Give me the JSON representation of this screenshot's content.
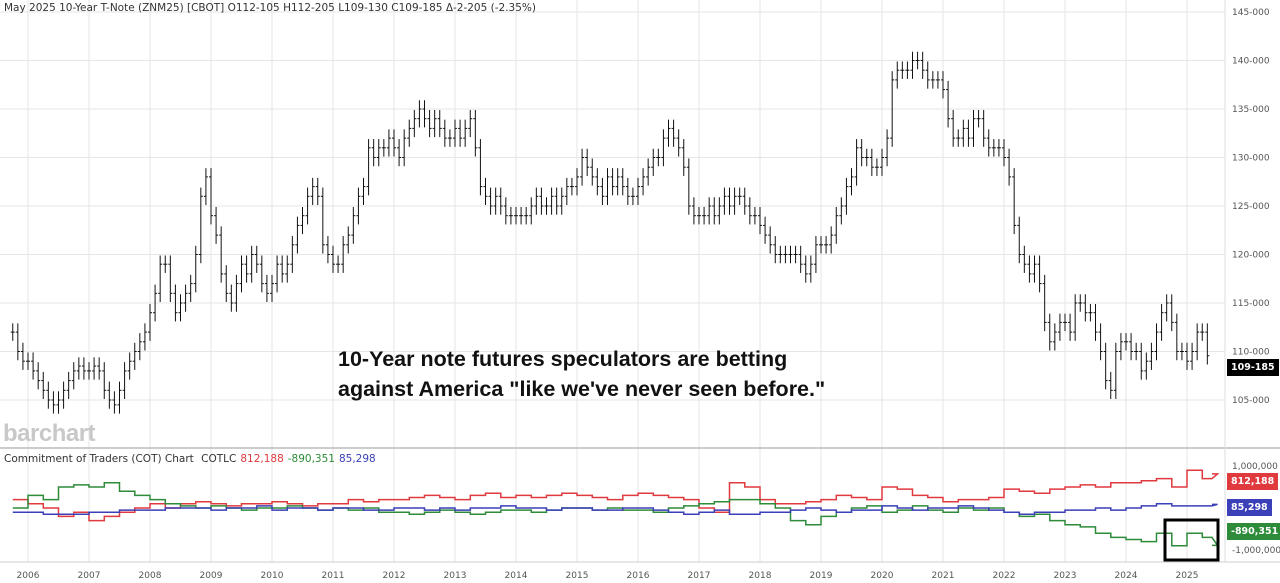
{
  "header": {
    "title": "May 2025 10-Year T-Note (ZNM25) [CBOT]",
    "open": "O112-105",
    "high": "H112-205",
    "low": "L109-130",
    "close": "C109-185",
    "change": "Δ-2-205 (-2.35%)"
  },
  "annotation": {
    "line1": "10-Year note futures speculators are betting",
    "line2": "against America \"like we've never seen before.\""
  },
  "logo": "barchart",
  "last_price_label": "109-185",
  "cot_header": {
    "title": "Commitment of Traders (COT) Chart",
    "code": "COTLC",
    "v1": "812,188",
    "v2": "-890,351",
    "v3": "85,298"
  },
  "colors": {
    "red": "#e0393e",
    "green": "#2e8b3a",
    "blue": "#3b3fb8",
    "price": "#111111",
    "grid": "#e6e6e6"
  },
  "chart_data": [
    {
      "type": "ohlc-bar",
      "title": "May 2025 10-Year T-Note (ZNM25) [CBOT]",
      "frequency": "monthly",
      "start": "2005-10",
      "ylim": [
        102,
        146
      ],
      "grid": true,
      "y_ticks": [
        "105-000",
        "110-000",
        "115-000",
        "120-000",
        "125-000",
        "130-000",
        "135-000",
        "140-000",
        "145-000"
      ],
      "y_tick_values": [
        105,
        110,
        115,
        120,
        125,
        130,
        135,
        140,
        145
      ],
      "x_ticks": [
        "2006",
        "2007",
        "2008",
        "2009",
        "2010",
        "2011",
        "2012",
        "2013",
        "2014",
        "2015",
        "2016",
        "2017",
        "2018",
        "2019",
        "2020",
        "2021",
        "2022",
        "2023",
        "2024",
        "2025"
      ],
      "close": [
        112,
        110,
        109,
        109,
        108,
        107,
        106,
        105,
        104.5,
        105,
        106,
        107,
        108,
        108.5,
        108,
        108,
        108.5,
        108,
        106,
        105,
        104.5,
        106,
        108,
        109,
        110,
        111,
        112,
        114,
        116,
        119,
        119,
        116,
        114,
        115,
        116,
        117,
        120,
        126,
        128,
        124,
        122,
        118,
        116,
        115,
        117,
        119,
        118,
        120,
        119,
        117,
        116,
        117,
        119,
        118,
        119,
        121,
        123,
        124,
        126,
        127,
        126,
        121,
        120,
        119,
        119,
        121,
        122,
        124,
        126,
        127,
        131,
        130,
        131,
        131,
        132,
        131,
        130,
        132,
        133,
        134,
        135,
        134,
        133,
        134,
        133,
        132,
        132,
        133,
        132,
        133,
        134,
        131,
        127,
        126,
        125,
        126,
        125,
        124,
        124,
        124,
        124,
        124,
        125,
        126,
        125,
        125,
        126,
        125,
        126,
        127,
        127,
        128,
        130,
        129,
        128,
        127,
        126,
        128,
        127,
        128,
        127,
        126,
        126,
        127,
        128,
        129,
        130,
        130,
        132,
        133,
        132,
        131,
        129,
        125,
        124,
        124,
        124,
        125,
        124,
        125,
        126,
        125,
        126,
        126,
        125,
        124,
        124,
        123,
        122,
        121,
        120,
        120,
        120,
        120,
        120,
        119,
        118,
        119,
        121,
        121,
        121,
        122,
        124,
        125,
        127,
        128,
        131,
        130,
        130,
        129,
        129,
        130,
        132,
        138,
        139,
        139,
        139,
        140,
        140,
        139,
        138,
        138,
        138,
        137,
        134,
        132,
        132,
        133,
        132,
        134,
        134,
        132,
        131,
        131,
        131,
        130,
        128,
        123,
        120,
        119,
        118,
        119,
        117,
        113,
        111,
        112,
        113,
        113,
        112,
        115,
        115,
        114,
        114,
        112,
        110,
        107,
        106,
        110,
        111,
        111,
        110,
        110,
        108,
        109,
        110,
        112,
        114,
        115,
        113,
        110,
        110,
        109,
        110,
        112,
        112,
        109.56
      ]
    },
    {
      "type": "line",
      "title": "Commitment of Traders (COT) Chart",
      "frequency": "quarterly",
      "start": "2005-10",
      "ylim": [
        -1000000,
        1000000
      ],
      "y_ticks": [
        "1,000,000",
        "-1,000,000"
      ],
      "series": [
        {
          "name": "812,188",
          "color": "#e0393e",
          "values": [
            200000,
            100000,
            0,
            -200000,
            -100000,
            -300000,
            -200000,
            -100000,
            0,
            100000,
            0,
            100000,
            150000,
            100000,
            50000,
            100000,
            100000,
            150000,
            100000,
            50000,
            100000,
            100000,
            200000,
            150000,
            200000,
            200000,
            250000,
            300000,
            250000,
            200000,
            300000,
            350000,
            250000,
            300000,
            250000,
            300000,
            350000,
            300000,
            250000,
            200000,
            300000,
            350000,
            300000,
            250000,
            200000,
            0,
            -100000,
            600000,
            500000,
            200000,
            100000,
            100000,
            150000,
            200000,
            300000,
            250000,
            200000,
            500000,
            450000,
            300000,
            250000,
            150000,
            200000,
            200000,
            250000,
            450000,
            400000,
            350000,
            450000,
            500000,
            550000,
            500000,
            600000,
            600000,
            650000,
            700000,
            500000,
            900000,
            700000,
            812188
          ]
        },
        {
          "name": "-890,351",
          "color": "#2e8b3a",
          "values": [
            0,
            300000,
            200000,
            500000,
            550000,
            500000,
            600000,
            400000,
            300000,
            200000,
            100000,
            50000,
            0,
            50000,
            0,
            -50000,
            0,
            0,
            50000,
            0,
            -50000,
            0,
            -50000,
            0,
            -100000,
            -100000,
            -150000,
            -100000,
            -50000,
            -100000,
            -150000,
            -100000,
            -50000,
            -50000,
            -100000,
            -50000,
            0,
            0,
            -50000,
            0,
            -50000,
            -50000,
            -100000,
            0,
            50000,
            100000,
            150000,
            200000,
            200000,
            100000,
            0,
            -300000,
            -400000,
            -200000,
            -100000,
            0,
            50000,
            -100000,
            -50000,
            50000,
            -50000,
            -100000,
            0,
            -50000,
            0,
            -100000,
            -200000,
            -150000,
            -300000,
            -400000,
            -450000,
            -600000,
            -700000,
            -750000,
            -800000,
            -600000,
            -900000,
            -600000,
            -700000,
            -890351
          ]
        },
        {
          "name": "85,298",
          "color": "#3b3fb8",
          "values": [
            -100000,
            -100000,
            -150000,
            -150000,
            -150000,
            -100000,
            -100000,
            -50000,
            -50000,
            -50000,
            0,
            0,
            0,
            -50000,
            0,
            0,
            50000,
            -50000,
            0,
            0,
            -50000,
            0,
            0,
            -50000,
            -50000,
            0,
            0,
            -50000,
            0,
            -50000,
            0,
            0,
            50000,
            0,
            0,
            -50000,
            0,
            0,
            -50000,
            -50000,
            0,
            0,
            -50000,
            -100000,
            -150000,
            -100000,
            -50000,
            -150000,
            -150000,
            -100000,
            -100000,
            -50000,
            0,
            -50000,
            -100000,
            -50000,
            -50000,
            50000,
            0,
            -50000,
            0,
            0,
            50000,
            0,
            -50000,
            -100000,
            -150000,
            -100000,
            -100000,
            -50000,
            -50000,
            0,
            -50000,
            0,
            50000,
            100000,
            50000,
            50000,
            50000,
            85298
          ]
        }
      ]
    }
  ]
}
